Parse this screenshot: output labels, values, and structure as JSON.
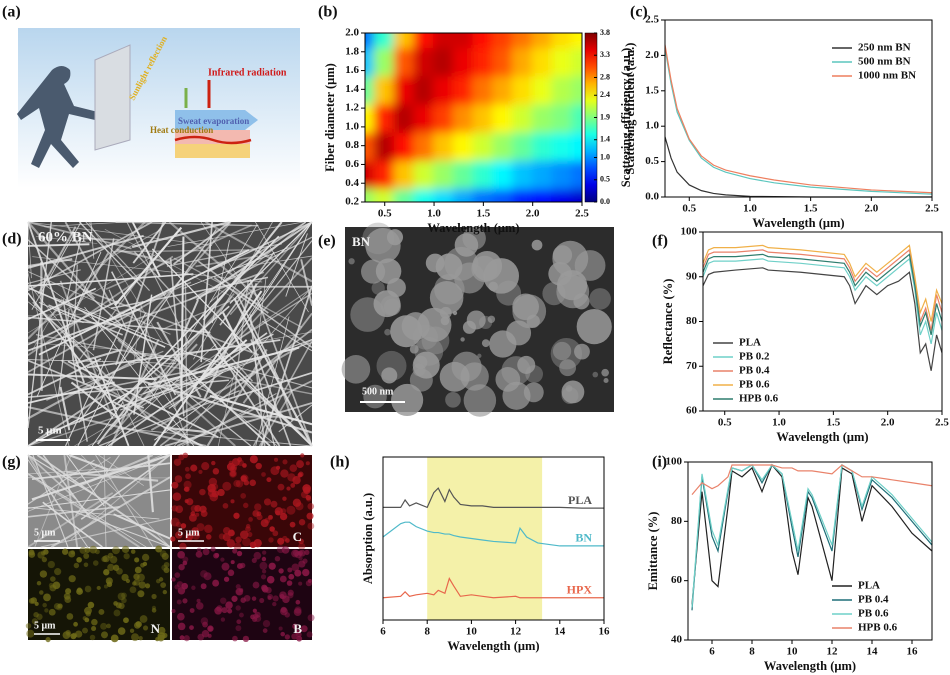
{
  "panel_labels": [
    "(a)",
    "(b)",
    "(c)",
    "(d)",
    "(e)",
    "(f)",
    "(g)",
    "(h)",
    "(i)"
  ],
  "panel_a": {
    "labels": [
      "Sunlight reflection",
      "Infrared radiation",
      "Sweat evaporation",
      "Heat conduction"
    ]
  },
  "panel_d": {
    "label": "60% BN",
    "scale_bar": "5 μm"
  },
  "panel_e": {
    "label": "BN",
    "scale_bar": "500 nm"
  },
  "panel_g": {
    "scale_bars": [
      "5 μm",
      "5 μm",
      "5 μm"
    ],
    "elements": [
      "C",
      "N",
      "B"
    ]
  },
  "chart_data": [
    {
      "type": "heatmap",
      "x_label": "Wavelength (μm)",
      "y_label": "Fiber diameter (μm)",
      "colorbar_label": "Scattering efficiency (a.u.)",
      "colormap": "jet",
      "x": [
        0.3,
        0.5,
        0.7,
        0.9,
        1.1,
        1.3,
        1.5,
        1.7,
        1.9,
        2.1,
        2.3,
        2.5
      ],
      "y": [
        0.2,
        0.5,
        0.8,
        1.1,
        1.4,
        1.7,
        2.0
      ],
      "z": [
        [
          2.0,
          2.2,
          1.8,
          1.5,
          1.3,
          1.1,
          0.9,
          0.8,
          0.6,
          0.5,
          0.4,
          0.3
        ],
        [
          3.5,
          3.2,
          2.6,
          2.2,
          2.0,
          1.8,
          1.6,
          1.4,
          1.2,
          1.1,
          1.0,
          0.9
        ],
        [
          3.0,
          3.6,
          3.3,
          2.9,
          2.6,
          2.4,
          2.2,
          2.0,
          1.8,
          1.6,
          1.5,
          1.4
        ],
        [
          2.4,
          3.2,
          3.6,
          3.4,
          3.1,
          2.8,
          2.6,
          2.4,
          2.2,
          2.0,
          1.9,
          1.7
        ],
        [
          1.8,
          2.6,
          3.4,
          3.6,
          3.4,
          3.2,
          2.9,
          2.7,
          2.5,
          2.3,
          2.1,
          2.0
        ],
        [
          1.2,
          2.0,
          3.0,
          3.5,
          3.6,
          3.4,
          3.2,
          3.0,
          2.7,
          2.5,
          2.3,
          2.2
        ],
        [
          0.9,
          1.6,
          2.6,
          3.3,
          3.5,
          3.5,
          3.3,
          3.1,
          2.9,
          2.7,
          2.5,
          2.4
        ]
      ],
      "xlim": [
        0.3,
        2.5
      ],
      "ylim": [
        0.2,
        2.0
      ],
      "xticks": [
        0.5,
        {
          "value": 1,
          "label": "1.0"
        },
        1.5,
        {
          "value": 2,
          "label": "2.0"
        },
        2.5
      ],
      "yticks": [
        0.2,
        0.4,
        0.6,
        0.8,
        {
          "value": 1,
          "label": "1.0"
        },
        1.2,
        1.4,
        1.6,
        1.8,
        {
          "value": 2,
          "label": "2.0"
        }
      ],
      "zlim": [
        0,
        3.8
      ],
      "zticks": [
        {
          "value": 0,
          "label": "0.0"
        },
        0.5,
        {
          "value": 1,
          "label": "1.0"
        },
        1.4,
        1.9,
        2.4,
        2.8,
        3.3,
        3.8
      ]
    },
    {
      "type": "line",
      "x_label": "Wavelength (μm)",
      "y_label": "Scattering efficient (a.u.)",
      "x": [
        0.3,
        0.35,
        0.4,
        0.5,
        0.6,
        0.7,
        0.8,
        1.0,
        1.2,
        1.5,
        2.0,
        2.5
      ],
      "series": [
        {
          "name": "250 nm BN",
          "color": "#333333",
          "values": [
            0.85,
            0.55,
            0.35,
            0.17,
            0.09,
            0.05,
            0.03,
            0.01,
            0.005,
            0,
            0,
            0
          ]
        },
        {
          "name": "500 nm BN",
          "color": "#5cc6be",
          "values": [
            2.1,
            1.6,
            1.2,
            0.8,
            0.55,
            0.42,
            0.35,
            0.26,
            0.2,
            0.14,
            0.08,
            0.04
          ]
        },
        {
          "name": "1000 nm BN",
          "color": "#ee7f5f",
          "values": [
            2.15,
            1.65,
            1.25,
            0.82,
            0.58,
            0.45,
            0.38,
            0.3,
            0.24,
            0.17,
            0.1,
            0.06
          ]
        }
      ],
      "xlim": [
        0.3,
        2.5
      ],
      "ylim": [
        0,
        2.5
      ],
      "xticks": [
        0.5,
        {
          "value": 1,
          "label": "1.0"
        },
        1.5,
        {
          "value": 2,
          "label": "2.0"
        },
        2.5
      ],
      "yticks": [
        {
          "value": 0,
          "label": "0.0"
        },
        0.5,
        {
          "value": 1,
          "label": "1.0"
        },
        1.5,
        {
          "value": 2,
          "label": "2.0"
        },
        2.5
      ],
      "legend": "upper right"
    },
    {
      "type": "line",
      "x_label": "Wavelength (μm)",
      "y_label": "Reflectance (%)",
      "x": [
        0.3,
        0.35,
        0.4,
        0.6,
        0.85,
        0.9,
        1.2,
        1.6,
        1.65,
        1.7,
        1.8,
        1.9,
        2.0,
        2.1,
        2.2,
        2.25,
        2.3,
        2.35,
        2.4,
        2.45,
        2.5
      ],
      "series": [
        {
          "name": "PLA",
          "color": "#444444",
          "values": [
            88,
            90.5,
            91,
            91.5,
            92,
            91.5,
            91,
            90,
            88,
            84,
            88,
            86,
            88,
            89,
            91,
            84,
            73,
            75,
            69,
            77,
            73
          ]
        },
        {
          "name": "PB 0.2",
          "color": "#6fd0c8",
          "values": [
            90,
            93,
            93.5,
            93.5,
            94,
            93.5,
            93,
            92,
            90,
            87,
            90,
            88,
            90,
            92,
            94,
            87,
            77,
            80,
            75,
            82,
            78
          ]
        },
        {
          "name": "PB 0.4",
          "color": "#e9826a",
          "values": [
            92,
            95,
            95.5,
            95.5,
            96,
            95.5,
            95,
            94,
            92,
            89,
            92,
            90,
            92,
            94,
            96,
            89,
            80,
            83,
            78,
            86,
            82
          ]
        },
        {
          "name": "PB 0.6",
          "color": "#f0b048",
          "values": [
            93,
            96,
            96.5,
            96.5,
            97,
            96.5,
            96,
            95,
            93,
            90,
            93,
            91,
            93,
            95,
            97,
            90,
            82,
            85,
            80,
            87,
            84
          ]
        },
        {
          "name": "HPB 0.6",
          "color": "#2e7d6e",
          "values": [
            91,
            94,
            94.5,
            94.5,
            95,
            94.5,
            94,
            93,
            91,
            88,
            91,
            89,
            91,
            93,
            95,
            88,
            79,
            82,
            77,
            84,
            80
          ]
        }
      ],
      "xlim": [
        0.3,
        2.5
      ],
      "ylim": [
        60,
        100
      ],
      "xticks": [
        0.5,
        {
          "value": 1,
          "label": "1.0"
        },
        1.5,
        {
          "value": 2,
          "label": "2.0"
        },
        2.5
      ],
      "yticks": [
        60,
        70,
        80,
        90,
        100
      ],
      "legend": "lower left"
    },
    {
      "type": "line",
      "x_label": "Wavelength (μm)",
      "y_label": "Absorption (a.u.)",
      "x": [
        6,
        6.8,
        7,
        7.2,
        7.5,
        8,
        8.3,
        8.5,
        8.8,
        9,
        9.2,
        9.5,
        10,
        10.5,
        11,
        12,
        12.2,
        12.5,
        13,
        14,
        15,
        16
      ],
      "series": [
        {
          "name": "PLA",
          "color": "#555555",
          "values": [
            7.6,
            7.6,
            8.1,
            7.7,
            7.9,
            7.6,
            8.6,
            8.9,
            8.0,
            8.8,
            8.3,
            7.8,
            7.7,
            7.7,
            7.6,
            7.6,
            7.6,
            7.6,
            7.6,
            7.6,
            7.55,
            7.55
          ]
        },
        {
          "name": "BN",
          "color": "#4fb9c9",
          "values": [
            5.6,
            6.5,
            6.6,
            6.6,
            6.3,
            6.0,
            5.9,
            5.9,
            5.8,
            5.8,
            5.7,
            5.6,
            5.5,
            5.4,
            5.3,
            5.2,
            6.2,
            5.6,
            5.2,
            5.0,
            5.0,
            5.0
          ]
        },
        {
          "name": "HPX",
          "color": "#e8674c",
          "values": [
            1.5,
            1.6,
            1.9,
            1.6,
            1.7,
            1.8,
            1.7,
            2.0,
            1.8,
            2.8,
            2.3,
            1.6,
            1.7,
            1.6,
            1.5,
            1.6,
            1.5,
            1.5,
            1.5,
            1.5,
            1.5,
            1.5
          ]
        }
      ],
      "xlim": [
        6,
        16
      ],
      "ylim": [
        0,
        11
      ],
      "xticks": [
        6,
        8,
        10,
        12,
        14,
        16
      ],
      "highlight": [
        8,
        13.2
      ],
      "highlight_color": "#f4f1a9",
      "legend": "inline"
    },
    {
      "type": "line",
      "x_label": "Wavelength (μm)",
      "y_label": "Emittance (%)",
      "x": [
        5,
        5.5,
        6,
        6.3,
        6.8,
        7,
        7.5,
        8,
        8.5,
        9,
        9.5,
        10,
        10.3,
        10.8,
        11,
        12,
        12.5,
        13,
        13.5,
        14,
        15,
        16,
        17
      ],
      "series": [
        {
          "name": "PLA",
          "color": "#222222",
          "values": [
            52,
            90,
            60,
            58,
            85,
            97,
            95,
            98,
            90,
            99,
            95,
            70,
            62,
            88,
            85,
            60,
            98,
            96,
            80,
            92,
            85,
            76,
            70
          ]
        },
        {
          "name": "PB 0.4",
          "color": "#1f6f78",
          "values": [
            50,
            95,
            75,
            70,
            90,
            98,
            97,
            99,
            93,
            99,
            96,
            78,
            68,
            90,
            88,
            70,
            99,
            97,
            84,
            94,
            88,
            80,
            72
          ]
        },
        {
          "name": "PB 0.6",
          "color": "#6fd0c8",
          "values": [
            51,
            96,
            77,
            72,
            91,
            98,
            97,
            99,
            94,
            99,
            96,
            80,
            70,
            91,
            89,
            72,
            99,
            97,
            85,
            95,
            89,
            81,
            73
          ]
        },
        {
          "name": "HPB 0.6",
          "color": "#e9826a",
          "values": [
            89,
            93,
            91,
            92,
            95,
            99,
            99,
            99,
            99,
            99,
            98,
            98,
            97,
            97,
            97,
            96,
            99,
            97,
            95,
            95,
            94,
            93,
            92
          ]
        }
      ],
      "xlim": [
        4.8,
        17
      ],
      "ylim": [
        40,
        100
      ],
      "xticks": [
        6,
        8,
        10,
        12,
        14,
        16
      ],
      "yticks": [
        40,
        60,
        80,
        100
      ],
      "legend": "lower right"
    }
  ]
}
